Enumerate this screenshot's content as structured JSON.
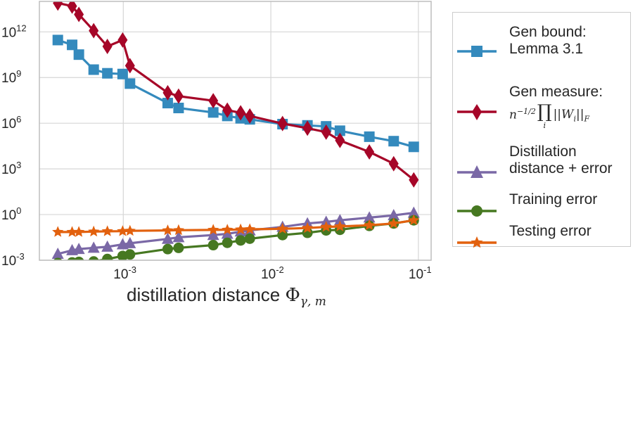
{
  "chart_data": {
    "type": "line",
    "xscale": "log",
    "yscale": "log",
    "xlim": [
      0.00027,
      0.122
    ],
    "ylim": [
      0.001,
      100000000000000.0
    ],
    "grid": true,
    "legend_placement": "outside-right",
    "xlabel_text": "distillation distance ",
    "xlabel_symbol": "Φ",
    "xlabel_sub": "γ, m",
    "xticks": [
      {
        "base": "10",
        "exp": "-3",
        "value": 0.001
      },
      {
        "base": "10",
        "exp": "-2",
        "value": 0.01
      },
      {
        "base": "10",
        "exp": "-1",
        "value": 0.1
      }
    ],
    "yticks": [
      {
        "base": "10",
        "exp": "12",
        "value": 1000000000000.0
      },
      {
        "base": "10",
        "exp": "9",
        "value": 1000000000.0
      },
      {
        "base": "10",
        "exp": "6",
        "value": 1000000.0
      },
      {
        "base": "10",
        "exp": "3",
        "value": 1000.0
      },
      {
        "base": "10",
        "exp": "0",
        "value": 1
      },
      {
        "base": "10",
        "exp": "-3",
        "value": 0.001
      }
    ],
    "x": [
      0.00036,
      0.00045,
      0.0005,
      0.00063,
      0.00078,
      0.00099,
      0.00111,
      0.002,
      0.00237,
      0.00407,
      0.00507,
      0.00624,
      0.0072,
      0.012,
      0.0177,
      0.0237,
      0.0294,
      0.0465,
      0.068,
      0.093
    ],
    "series": [
      {
        "name": "Gen bound: Lemma 3.1",
        "marker": "square",
        "color": "#348ABD",
        "values": [
          290000000000.0,
          140000000000.0,
          32000000000.0,
          3300000000.0,
          1900000000.0,
          1700000000.0,
          400000000.0,
          21000000.0,
          10000000.0,
          5100000.0,
          3000000.0,
          2100000.0,
          1800000.0,
          870000.0,
          720000.0,
          620000.0,
          320000.0,
          130000.0,
          66000.0,
          28000.0
        ]
      },
      {
        "name": "Gen measure",
        "marker": "diamond",
        "color": "#A60628",
        "values": [
          78000000000000.0,
          49000000000000.0,
          14000000000000.0,
          1200000000000.0,
          110000000000.0,
          290000000000.0,
          6000000000.0,
          100000000.0,
          60000000.0,
          30000000.0,
          7200000.0,
          4800000.0,
          3000000.0,
          950000.0,
          470000.0,
          260000.0,
          74000.0,
          13000.0,
          2200.0,
          190.0
        ]
      },
      {
        "name": "Distillation distance + error",
        "marker": "triangle",
        "color": "#7A68A6",
        "values": [
          0.0026,
          0.0045,
          0.0054,
          0.0065,
          0.0076,
          0.011,
          0.013,
          0.025,
          0.032,
          0.045,
          0.054,
          0.076,
          0.091,
          0.155,
          0.26,
          0.33,
          0.42,
          0.63,
          0.89,
          1.3
        ]
      },
      {
        "name": "Training error",
        "marker": "circle",
        "color": "#467821",
        "values": [
          0.00065,
          0.00072,
          0.00078,
          0.00083,
          0.0012,
          0.0019,
          0.0024,
          0.0054,
          0.0065,
          0.0098,
          0.014,
          0.02,
          0.026,
          0.045,
          0.063,
          0.091,
          0.1,
          0.18,
          0.26,
          0.42
        ]
      },
      {
        "name": "Testing error",
        "marker": "star",
        "color": "#E2610E",
        "values": [
          0.071,
          0.071,
          0.071,
          0.076,
          0.079,
          0.081,
          0.085,
          0.091,
          0.094,
          0.098,
          0.1,
          0.104,
          0.108,
          0.116,
          0.13,
          0.155,
          0.165,
          0.2,
          0.26,
          0.42
        ]
      }
    ]
  },
  "legend": {
    "items": [
      {
        "line1": "Gen bound:",
        "line2": "Lemma 3.1"
      },
      {
        "line1": "Gen measure:",
        "math_n": "n",
        "math_exp": "−1/2",
        "math_prod": "∏",
        "math_prod_sub": "i",
        "math_norm": "||W",
        "math_norm_sub": "i",
        "math_norm_end": "||",
        "math_norm_end_sub": "F"
      },
      {
        "line1": "Distillation",
        "line2": "distance + error"
      },
      {
        "line1": "Training error"
      },
      {
        "line1": "Testing error"
      }
    ]
  }
}
